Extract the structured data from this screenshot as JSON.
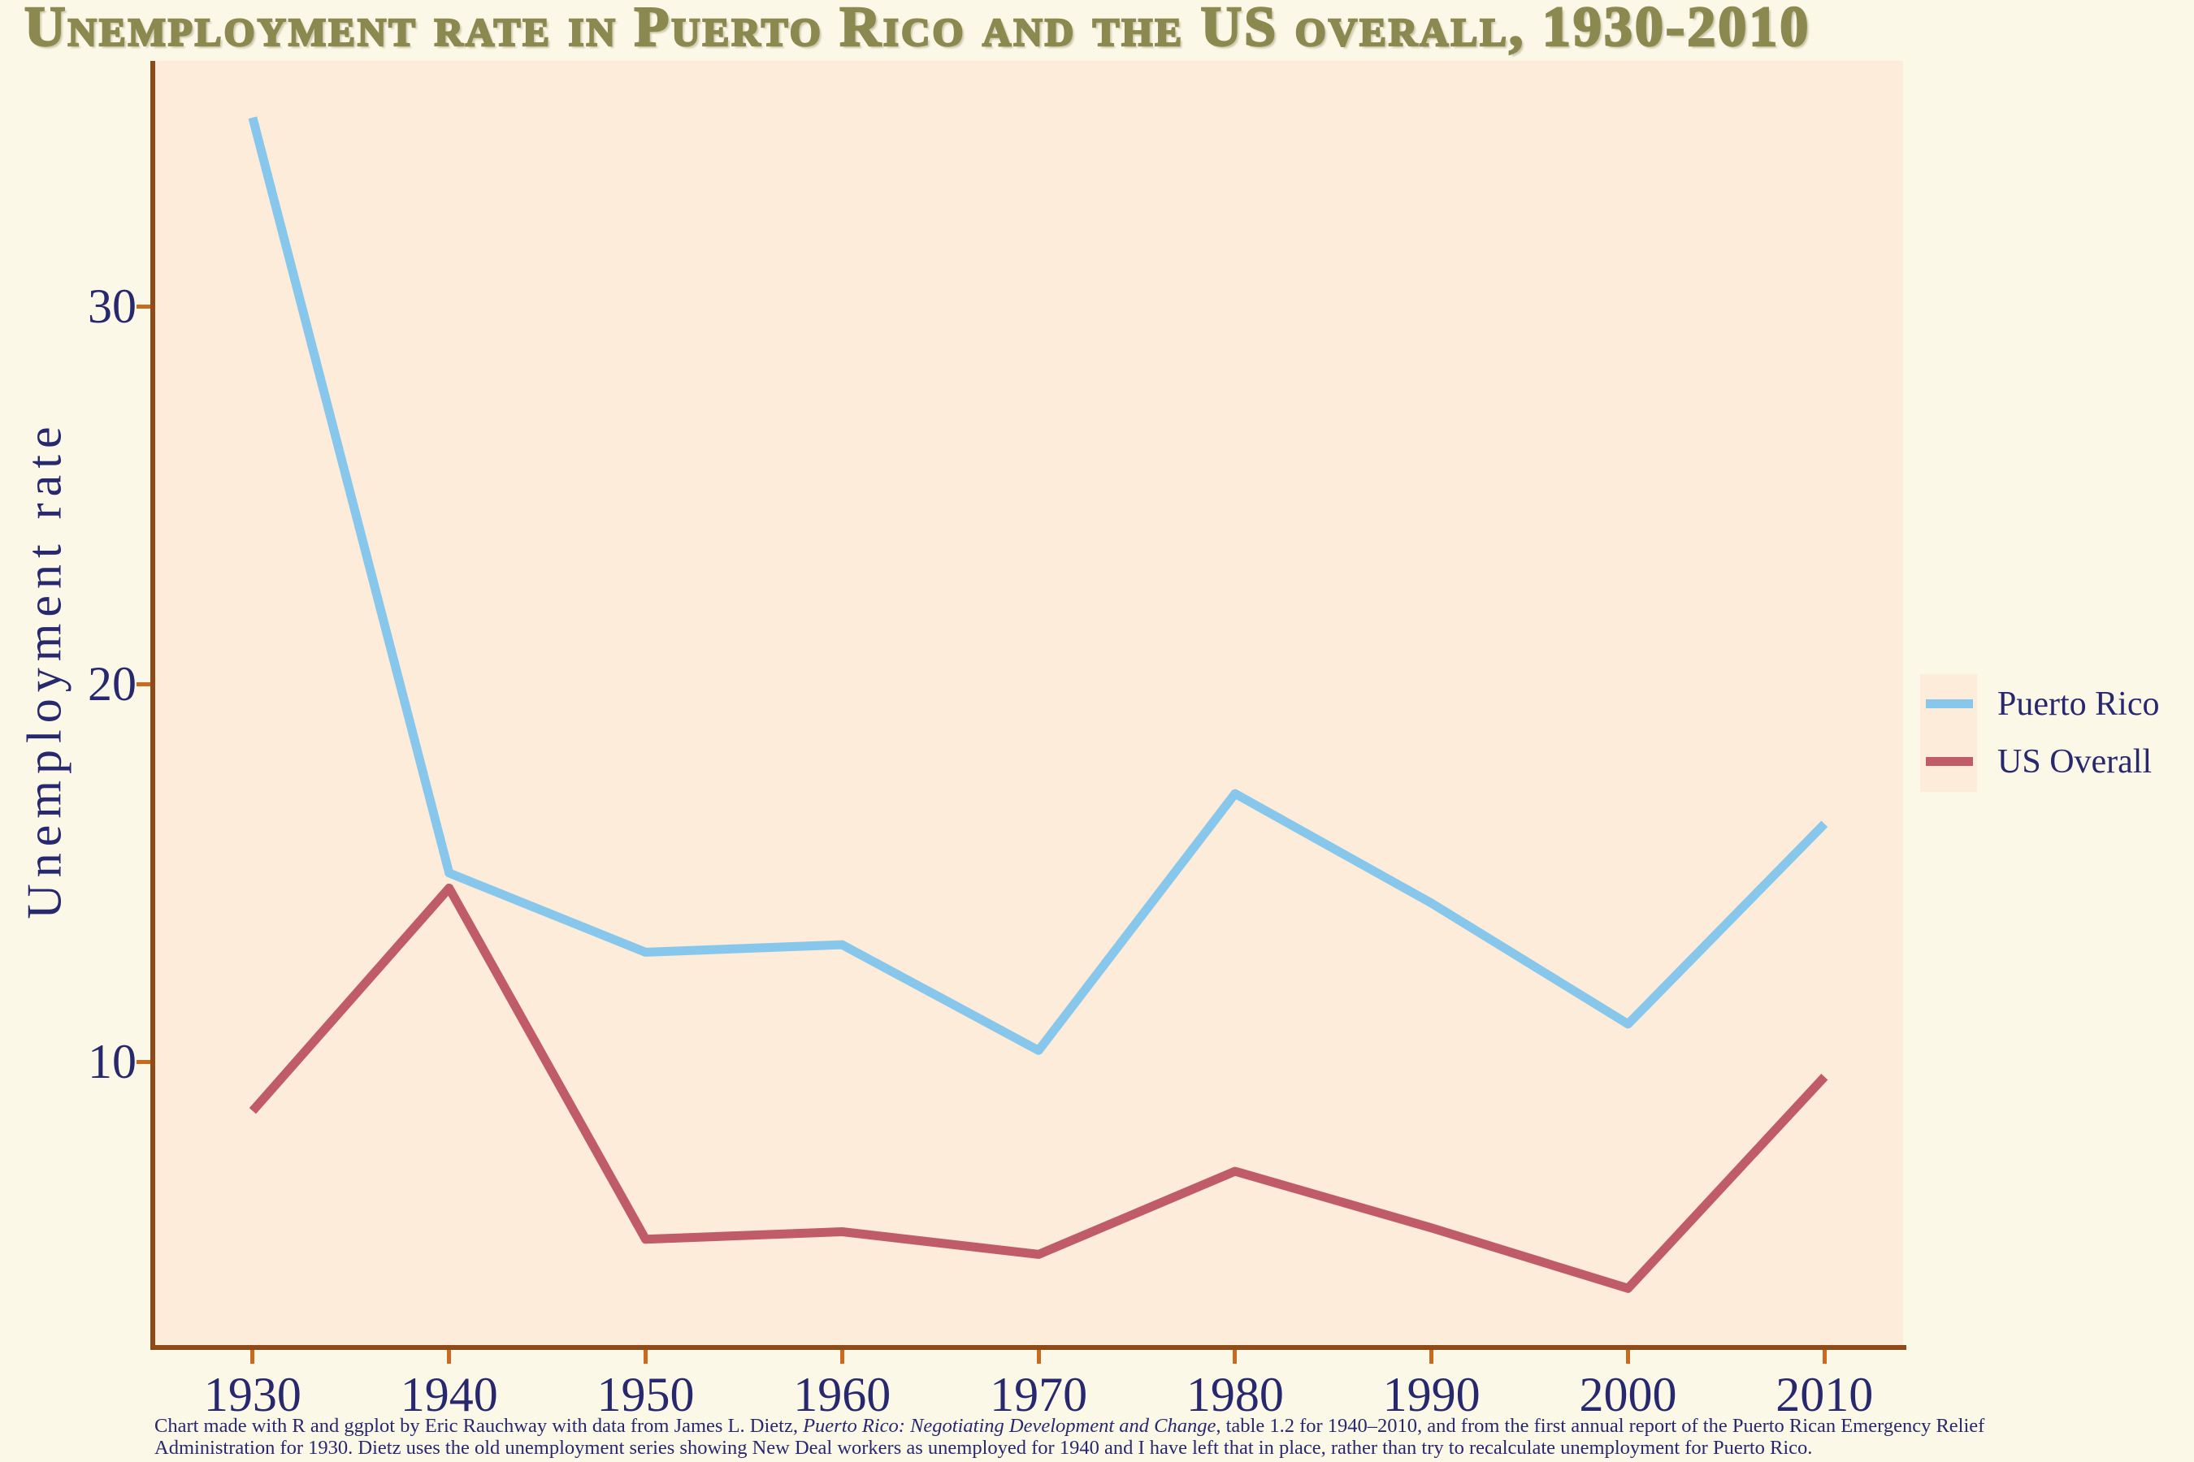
{
  "title": "Unemployment rate in Puerto Rico and the US overall, 1930-2010",
  "y_axis": {
    "label": "Unemployment rate",
    "ticks": [
      "30",
      "20",
      "10"
    ]
  },
  "x_axis": {
    "ticks": [
      "1930",
      "1940",
      "1950",
      "1960",
      "1970",
      "1980",
      "1990",
      "2000",
      "2010"
    ]
  },
  "legend": {
    "items": [
      {
        "label": "Puerto Rico",
        "color": "#88c7ec"
      },
      {
        "label": "US Overall",
        "color": "#c05b68"
      }
    ]
  },
  "caption": {
    "line1": {
      "pre": "Chart made with R and ggplot by Eric Rauchway with data from James L. Dietz, ",
      "italic": "Puerto Rico: Negotiating Development and Change",
      "post": ", table 1.2 for 1940–2010, and from the first annual report of the Puerto Rican Emergency Relief"
    },
    "line2": "Administration for 1930. Dietz uses the old unemployment series showing New Deal workers as unemployed for 1940 and I have left that in place, rather than try to recalculate unemployment for Puerto Rico."
  },
  "colors": {
    "page_background": "#fcf8e8",
    "plot_background": "#fcecd9",
    "title": "#8b8950",
    "axis_line": "#8e4a17",
    "tick_mark": "#ca6a1f",
    "text": "#28286e",
    "puerto_rico_line": "#88c7ec",
    "us_overall_line": "#c05b68"
  },
  "chart_data": {
    "type": "line",
    "title": "Unemployment rate in Puerto Rico and the US overall, 1930-2010",
    "xlabel": "",
    "ylabel": "Unemployment rate",
    "x": [
      1930,
      1940,
      1950,
      1960,
      1970,
      1980,
      1990,
      2000,
      2010
    ],
    "series": [
      {
        "name": "Puerto Rico",
        "color": "#88c7ec",
        "values": [
          35.0,
          15.0,
          12.9,
          13.1,
          10.3,
          17.1,
          14.2,
          11.0,
          16.3
        ]
      },
      {
        "name": "US Overall",
        "color": "#c05b68",
        "values": [
          8.7,
          14.6,
          5.3,
          5.5,
          4.9,
          7.1,
          5.6,
          4.0,
          9.6
        ]
      }
    ],
    "xticks": [
      1930,
      1940,
      1950,
      1960,
      1970,
      1980,
      1990,
      2000,
      2010
    ],
    "yticks": [
      30,
      20,
      10
    ],
    "xlim": [
      1925,
      2014
    ],
    "ylim": [
      2.5,
      36.5
    ],
    "grid": false,
    "legend_position": "right"
  }
}
